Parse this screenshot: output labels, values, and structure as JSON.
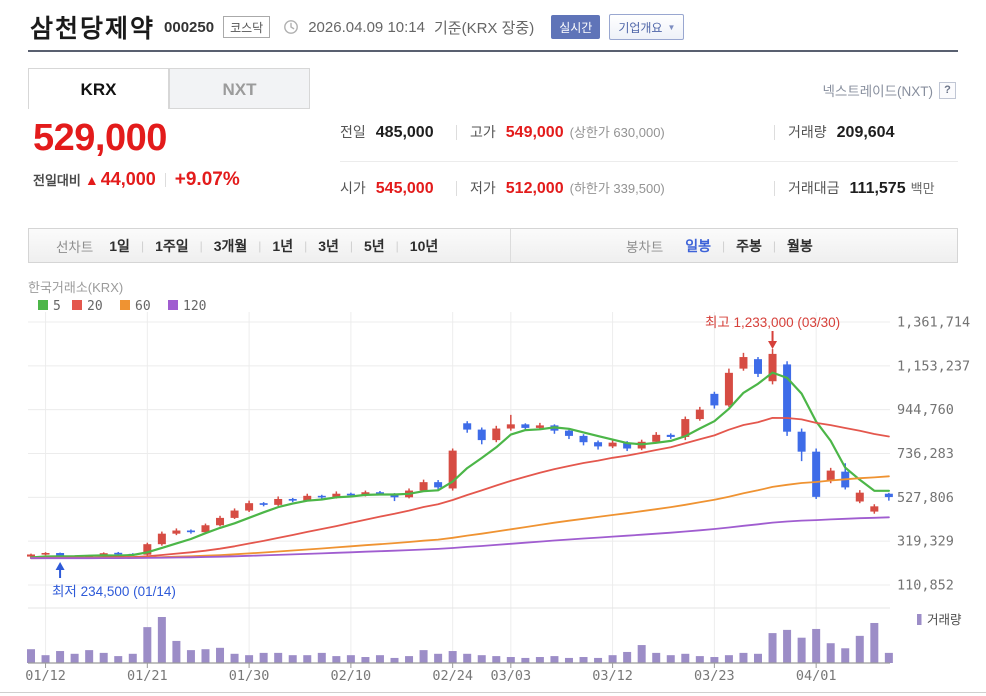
{
  "header": {
    "stock_name": "삼천당제약",
    "stock_code": "000250",
    "market_badge": "코스닥",
    "datetime": "2026.04.09 10:14",
    "basis": "기준(KRX 장중)",
    "realtime_badge": "실시간",
    "company_overview": "기업개요"
  },
  "tabs": {
    "krx": "KRX",
    "nxt": "NXT",
    "nxt_link": "넥스트레이드(NXT)",
    "help": "?"
  },
  "price": {
    "current": "529,000",
    "change_label": "전일대비",
    "change_arrow": "▲",
    "change_value": "44,000",
    "change_percent": "+9.07%"
  },
  "summary": {
    "prev": {
      "label": "전일",
      "value": "485,000"
    },
    "high": {
      "label": "고가",
      "value": "549,000",
      "cap_text": "(상한가 630,000)"
    },
    "open": {
      "label": "시가",
      "value": "545,000"
    },
    "low": {
      "label": "저가",
      "value": "512,000",
      "cap_text": "(하한가 339,500)"
    },
    "volume": {
      "label": "거래량",
      "value": "209,604"
    },
    "value": {
      "label": "거래대금",
      "value": "111,575",
      "unit": "백만"
    }
  },
  "toolbar": {
    "left_label": "선차트",
    "left_items": [
      "1일",
      "1주일",
      "3개월",
      "1년",
      "3년",
      "5년",
      "10년"
    ],
    "right_label": "봉차트",
    "right_items": [
      "일봉",
      "주봉",
      "월봉"
    ],
    "active_right": "일봉"
  },
  "colors": {
    "up": "#d64c43",
    "down": "#3e6ce8",
    "ma5": "#4cb648",
    "ma20": "#e4574d",
    "ma60": "#ef9332",
    "ma120": "#a05dd0",
    "volume": "#9c8dc7",
    "annotation_high": "#d6403a",
    "annotation_low": "#2e5ad8",
    "grid": "#ececec",
    "axis_text": "#737373"
  },
  "chart_data": {
    "type": "candlestick",
    "source_label": "한국거래소(KRX)",
    "ma_legend": [
      {
        "period": "5",
        "color": "#4cb648"
      },
      {
        "period": "20",
        "color": "#e4574d"
      },
      {
        "period": "60",
        "color": "#ef9332"
      },
      {
        "period": "120",
        "color": "#a05dd0"
      }
    ],
    "ma_periods": [
      5,
      20,
      60,
      120
    ],
    "ma_prehistory": 238000,
    "y_axis": {
      "ticks": [
        {
          "value": 1361714,
          "label": "1,361,714"
        },
        {
          "value": 1153237,
          "label": "1,153,237"
        },
        {
          "value": 944760,
          "label": "944,760"
        },
        {
          "value": 736283,
          "label": "736,283"
        },
        {
          "value": 527806,
          "label": "527,806"
        },
        {
          "value": 319329,
          "label": "319,329"
        },
        {
          "value": 110852,
          "label": "110,852"
        }
      ]
    },
    "x_axis": {
      "ticks": [
        {
          "index": 1,
          "label": "01/12"
        },
        {
          "index": 8,
          "label": "01/21"
        },
        {
          "index": 15,
          "label": "01/30"
        },
        {
          "index": 22,
          "label": "02/10"
        },
        {
          "index": 29,
          "label": "02/24"
        },
        {
          "index": 33,
          "label": "03/03"
        },
        {
          "index": 40,
          "label": "03/12"
        },
        {
          "index": 47,
          "label": "03/23"
        },
        {
          "index": 54,
          "label": "04/01"
        }
      ]
    },
    "annotations": {
      "high": {
        "text": "최고 1,233,000 (03/30)",
        "index": 51,
        "price": 1233000
      },
      "low": {
        "text": "최저 234,500 (01/14)",
        "index": 2,
        "price": 234500
      }
    },
    "volume_legend": "거래량",
    "candles": [
      [
        246000,
        260000,
        242000,
        256000
      ],
      [
        256000,
        267000,
        252000,
        263000
      ],
      [
        263000,
        265000,
        234500,
        241000
      ],
      [
        244000,
        249000,
        238000,
        242000
      ],
      [
        242000,
        254000,
        239000,
        250000
      ],
      [
        250000,
        266000,
        247000,
        262000
      ],
      [
        264000,
        268000,
        255000,
        259000
      ],
      [
        259000,
        262000,
        251000,
        255000
      ],
      [
        255000,
        312000,
        250000,
        305000
      ],
      [
        305000,
        365000,
        298000,
        355000
      ],
      [
        355000,
        380000,
        348000,
        370000
      ],
      [
        370000,
        375000,
        355000,
        362000
      ],
      [
        362000,
        403000,
        357000,
        395000
      ],
      [
        395000,
        440000,
        390000,
        430000
      ],
      [
        430000,
        475000,
        425000,
        465000
      ],
      [
        465000,
        512000,
        458000,
        500000
      ],
      [
        500000,
        505000,
        485000,
        492000
      ],
      [
        492000,
        532000,
        487000,
        520000
      ],
      [
        520000,
        525000,
        505000,
        512000
      ],
      [
        512000,
        545000,
        508000,
        535000
      ],
      [
        535000,
        540000,
        520000,
        528000
      ],
      [
        528000,
        556000,
        522000,
        545000
      ],
      [
        545000,
        550000,
        530000,
        538000
      ],
      [
        538000,
        560000,
        532000,
        552000
      ],
      [
        552000,
        558000,
        537000,
        544000
      ],
      [
        544000,
        548000,
        510000,
        528000
      ],
      [
        528000,
        570000,
        523000,
        560000
      ],
      [
        560000,
        612000,
        554000,
        600000
      ],
      [
        600000,
        610000,
        565000,
        575000
      ],
      [
        570000,
        760000,
        560000,
        750000
      ],
      [
        880000,
        890000,
        835000,
        850000
      ],
      [
        850000,
        860000,
        780000,
        800000
      ],
      [
        800000,
        868000,
        790000,
        855000
      ],
      [
        855000,
        920000,
        845000,
        875000
      ],
      [
        875000,
        880000,
        848000,
        858000
      ],
      [
        858000,
        882000,
        850000,
        870000
      ],
      [
        870000,
        875000,
        830000,
        845000
      ],
      [
        845000,
        850000,
        805000,
        820000
      ],
      [
        820000,
        828000,
        775000,
        790000
      ],
      [
        790000,
        798000,
        755000,
        770000
      ],
      [
        770000,
        800000,
        762000,
        788000
      ],
      [
        788000,
        795000,
        748000,
        760000
      ],
      [
        760000,
        802000,
        752000,
        792000
      ],
      [
        792000,
        838000,
        786000,
        825000
      ],
      [
        825000,
        832000,
        806000,
        815000
      ],
      [
        815000,
        912000,
        800000,
        900000
      ],
      [
        900000,
        958000,
        892000,
        945000
      ],
      [
        1020000,
        1030000,
        950000,
        965000
      ],
      [
        965000,
        1140000,
        958000,
        1120000
      ],
      [
        1140000,
        1215000,
        1130000,
        1195000
      ],
      [
        1185000,
        1195000,
        1100000,
        1115000
      ],
      [
        1080000,
        1233000,
        1065000,
        1210000
      ],
      [
        1160000,
        1175000,
        820000,
        840000
      ],
      [
        840000,
        855000,
        700000,
        745000
      ],
      [
        745000,
        760000,
        520000,
        530000
      ],
      [
        610000,
        668000,
        595000,
        655000
      ],
      [
        650000,
        690000,
        565000,
        575000
      ],
      [
        508000,
        562000,
        500000,
        550000
      ],
      [
        460000,
        495000,
        450000,
        485000
      ],
      [
        545000,
        549000,
        512000,
        529000
      ]
    ],
    "volumes": [
      0.3,
      0.17,
      0.26,
      0.2,
      0.28,
      0.22,
      0.15,
      0.2,
      0.78,
      1.0,
      0.48,
      0.28,
      0.3,
      0.33,
      0.2,
      0.17,
      0.22,
      0.22,
      0.17,
      0.17,
      0.22,
      0.15,
      0.17,
      0.13,
      0.17,
      0.11,
      0.15,
      0.28,
      0.2,
      0.26,
      0.2,
      0.17,
      0.15,
      0.13,
      0.11,
      0.13,
      0.15,
      0.11,
      0.13,
      0.11,
      0.17,
      0.24,
      0.39,
      0.22,
      0.17,
      0.2,
      0.15,
      0.13,
      0.17,
      0.22,
      0.2,
      0.65,
      0.72,
      0.55,
      0.74,
      0.43,
      0.32,
      0.59,
      0.87,
      0.22
    ]
  }
}
